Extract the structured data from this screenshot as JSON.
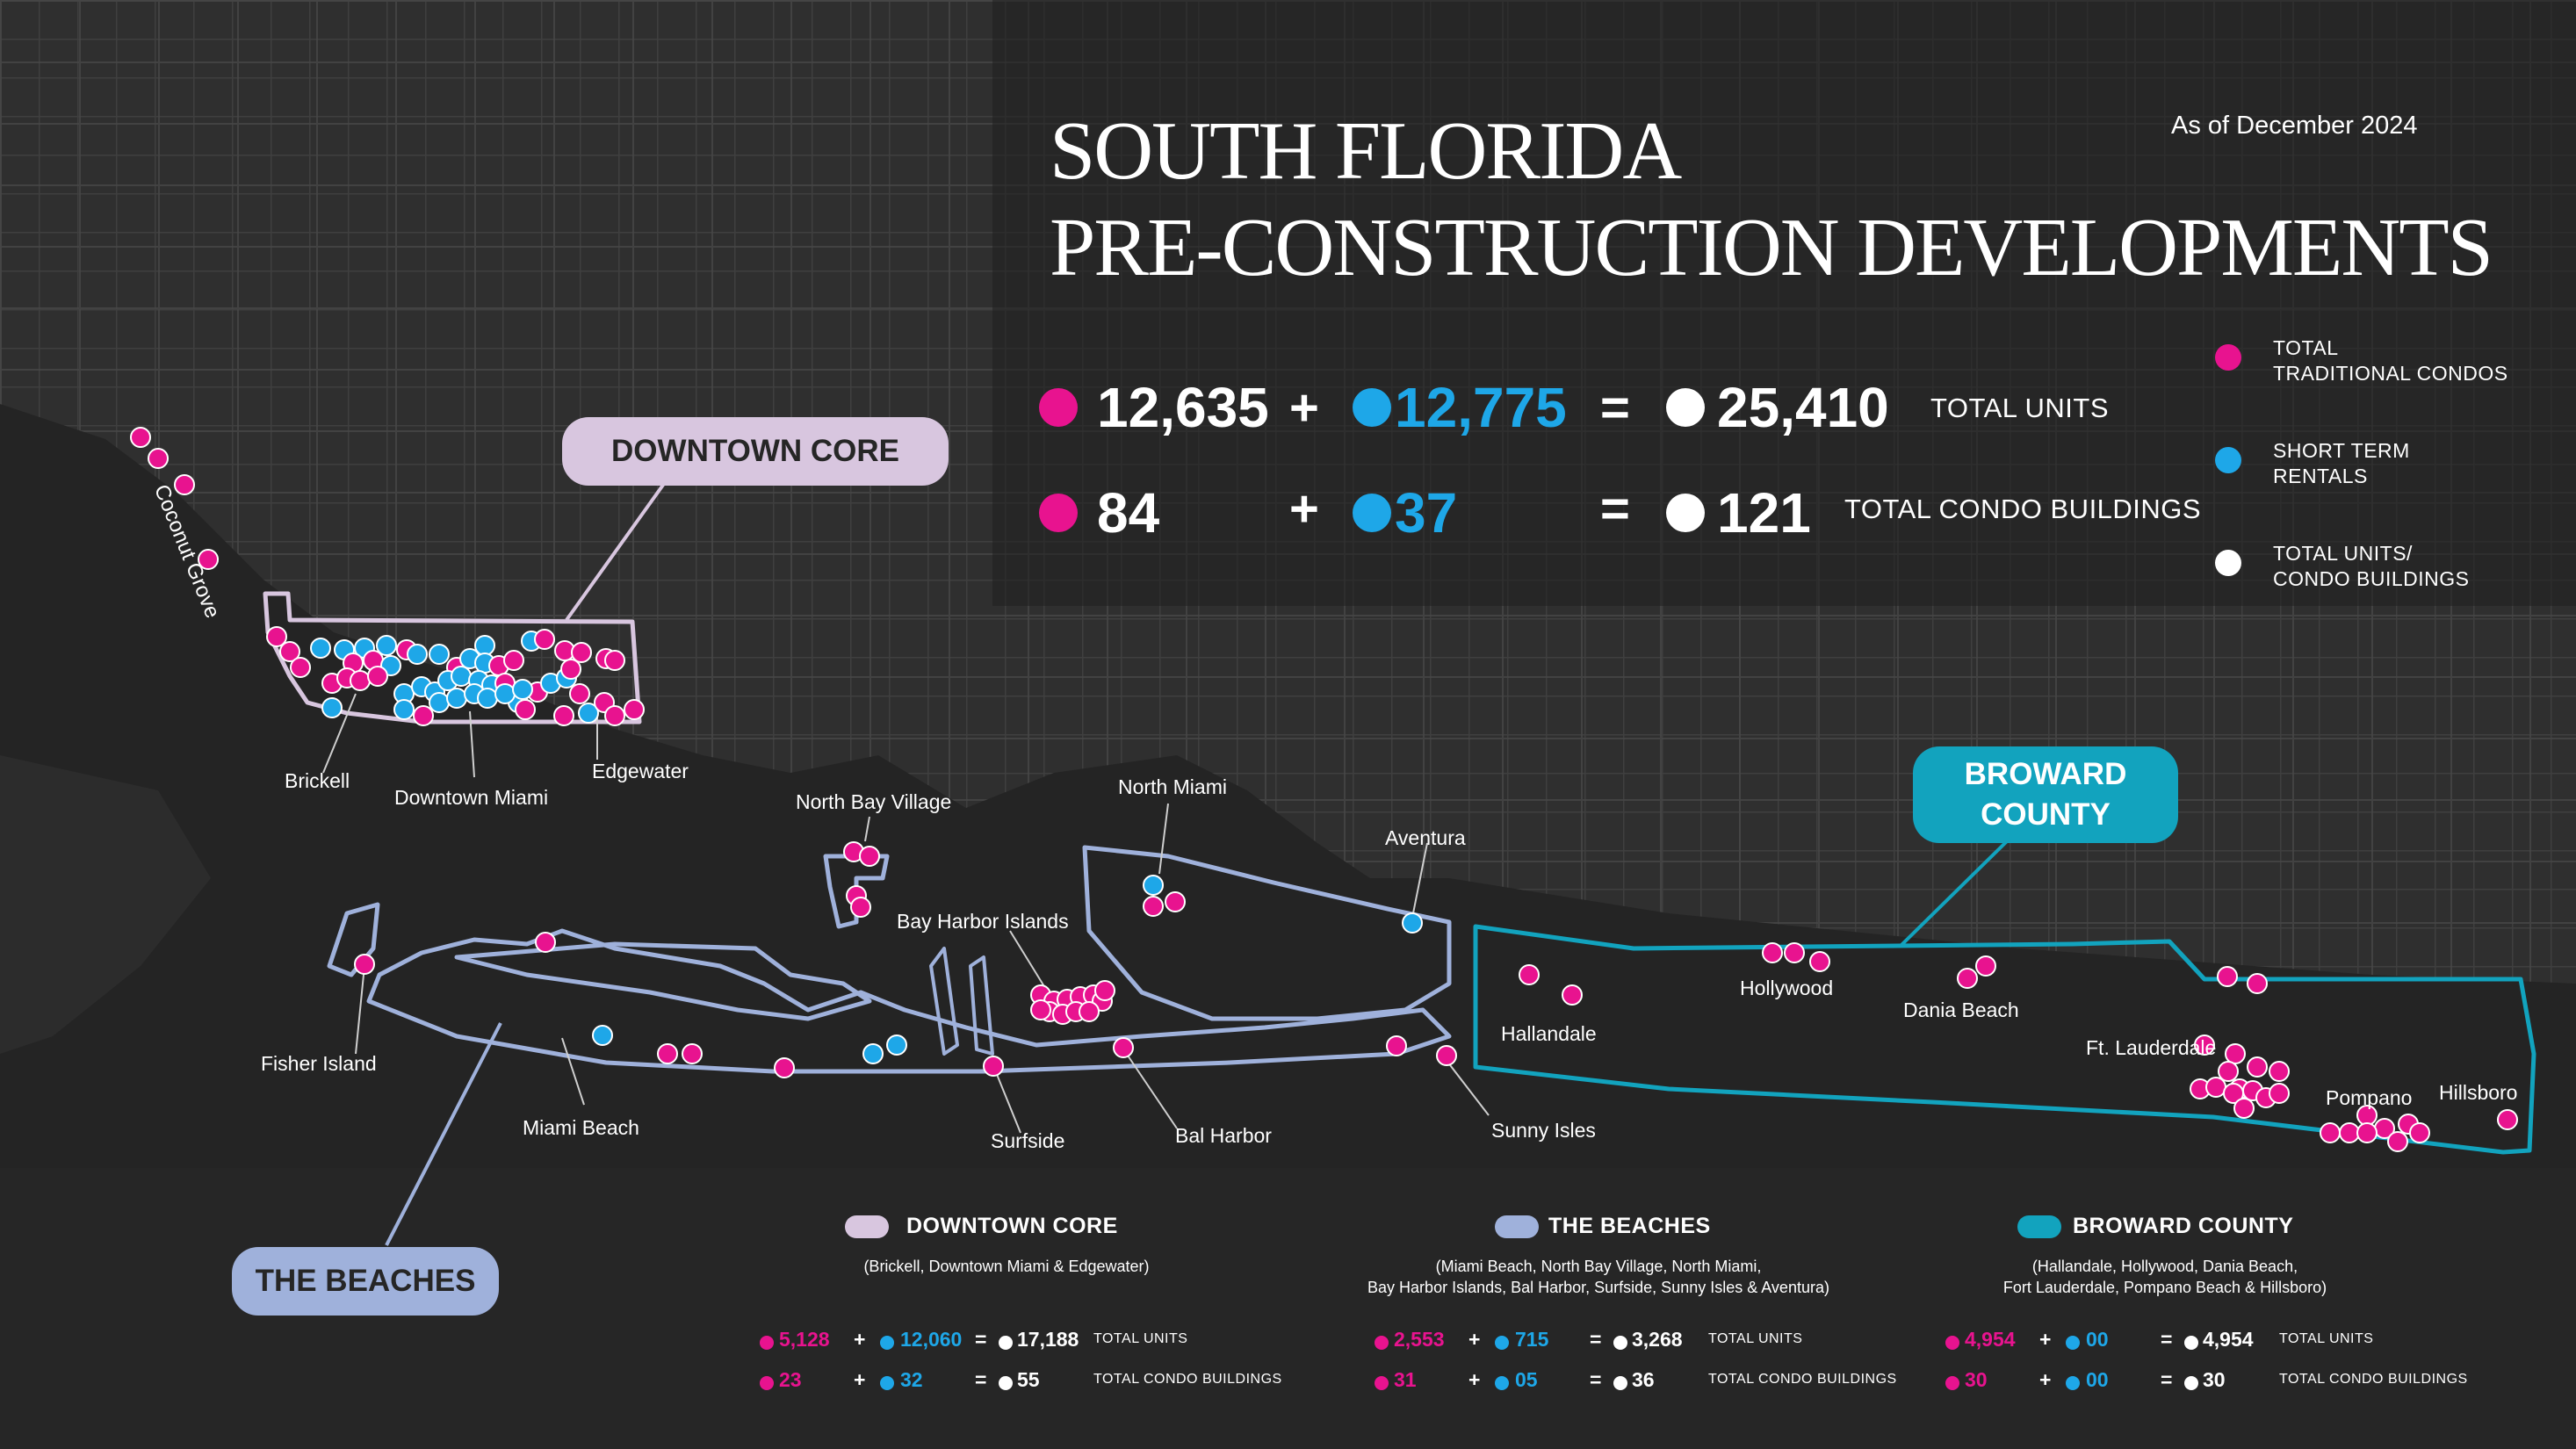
{
  "header": {
    "title_line1": "SOUTH FLORIDA",
    "title_line2": "PRE-CONSTRUCTION DEVELOPMENTS",
    "as_of": "As of December 2024"
  },
  "colors": {
    "traditional": "#e8138f",
    "short_term": "#1ea7e8",
    "total": "#ffffff",
    "downtown_core": "#d8c6df",
    "the_beaches": "#9fb1db",
    "broward": "#12a3be"
  },
  "totals": {
    "units": {
      "traditional": "12,635",
      "plus": "+",
      "short_term": "12,775",
      "equals": "=",
      "total": "25,410",
      "label": "TOTAL UNITS"
    },
    "buildings": {
      "traditional": "84",
      "plus": "+",
      "short_term": "37",
      "equals": "=",
      "total": "121",
      "label": "TOTAL CONDO BUILDINGS"
    }
  },
  "legend": {
    "traditional_line1": "TOTAL",
    "traditional_line2": "TRADITIONAL CONDOS",
    "short_term_line1": "SHORT TERM",
    "short_term_line2": "RENTALS",
    "total_line1": "TOTAL UNITS/",
    "total_line2": "CONDO BUILDINGS"
  },
  "region_labels": {
    "downtown_core": "DOWNTOWN CORE",
    "the_beaches": "THE BEACHES",
    "broward_line1": "BROWARD",
    "broward_line2": "COUNTY"
  },
  "places": {
    "coconut_grove": "Coconut Grove",
    "brickell": "Brickell",
    "downtown_miami": "Downtown Miami",
    "edgewater": "Edgewater",
    "north_bay_village": "North Bay Village",
    "north_miami": "North Miami",
    "aventura": "Aventura",
    "bay_harbor_islands": "Bay Harbor Islands",
    "fisher_island": "Fisher Island",
    "miami_beach": "Miami Beach",
    "surfside": "Surfside",
    "bal_harbor": "Bal Harbor",
    "sunny_isles": "Sunny Isles",
    "hallandale": "Hallandale",
    "hollywood": "Hollywood",
    "dania_beach": "Dania Beach",
    "ft_lauderdale": "Ft. Lauderdale",
    "pompano": "Pompano",
    "hillsboro": "Hillsboro"
  },
  "summaries": [
    {
      "title": "DOWNTOWN CORE",
      "sub_line1": "(Brickell, Downtown Miami & Edgewater)",
      "sub_line2": "",
      "units": {
        "traditional": "5,128",
        "short_term": "12,060",
        "total": "17,188",
        "label": "TOTAL UNITS"
      },
      "buildings": {
        "traditional": "23",
        "short_term": "32",
        "total": "55",
        "label": "TOTAL CONDO BUILDINGS"
      }
    },
    {
      "title": "THE BEACHES",
      "sub_line1": "(Miami Beach, North Bay Village, North Miami,",
      "sub_line2": "Bay Harbor Islands, Bal Harbor, Surfside, Sunny Isles & Aventura)",
      "units": {
        "traditional": "2,553",
        "short_term": "715",
        "total": "3,268",
        "label": "TOTAL UNITS"
      },
      "buildings": {
        "traditional": "31",
        "short_term": "05",
        "total": "36",
        "label": "TOTAL CONDO BUILDINGS"
      }
    },
    {
      "title": "BROWARD COUNTY",
      "sub_line1": "(Hallandale, Hollywood, Dania Beach,",
      "sub_line2": "Fort Lauderdale, Pompano Beach & Hillsboro)",
      "units": {
        "traditional": "4,954",
        "short_term": "00",
        "total": "4,954",
        "label": "TOTAL UNITS"
      },
      "buildings": {
        "traditional": "30",
        "short_term": "00",
        "total": "30",
        "label": "TOTAL CONDO BUILDINGS"
      }
    }
  ],
  "ops": {
    "plus": "+",
    "equals": "="
  }
}
